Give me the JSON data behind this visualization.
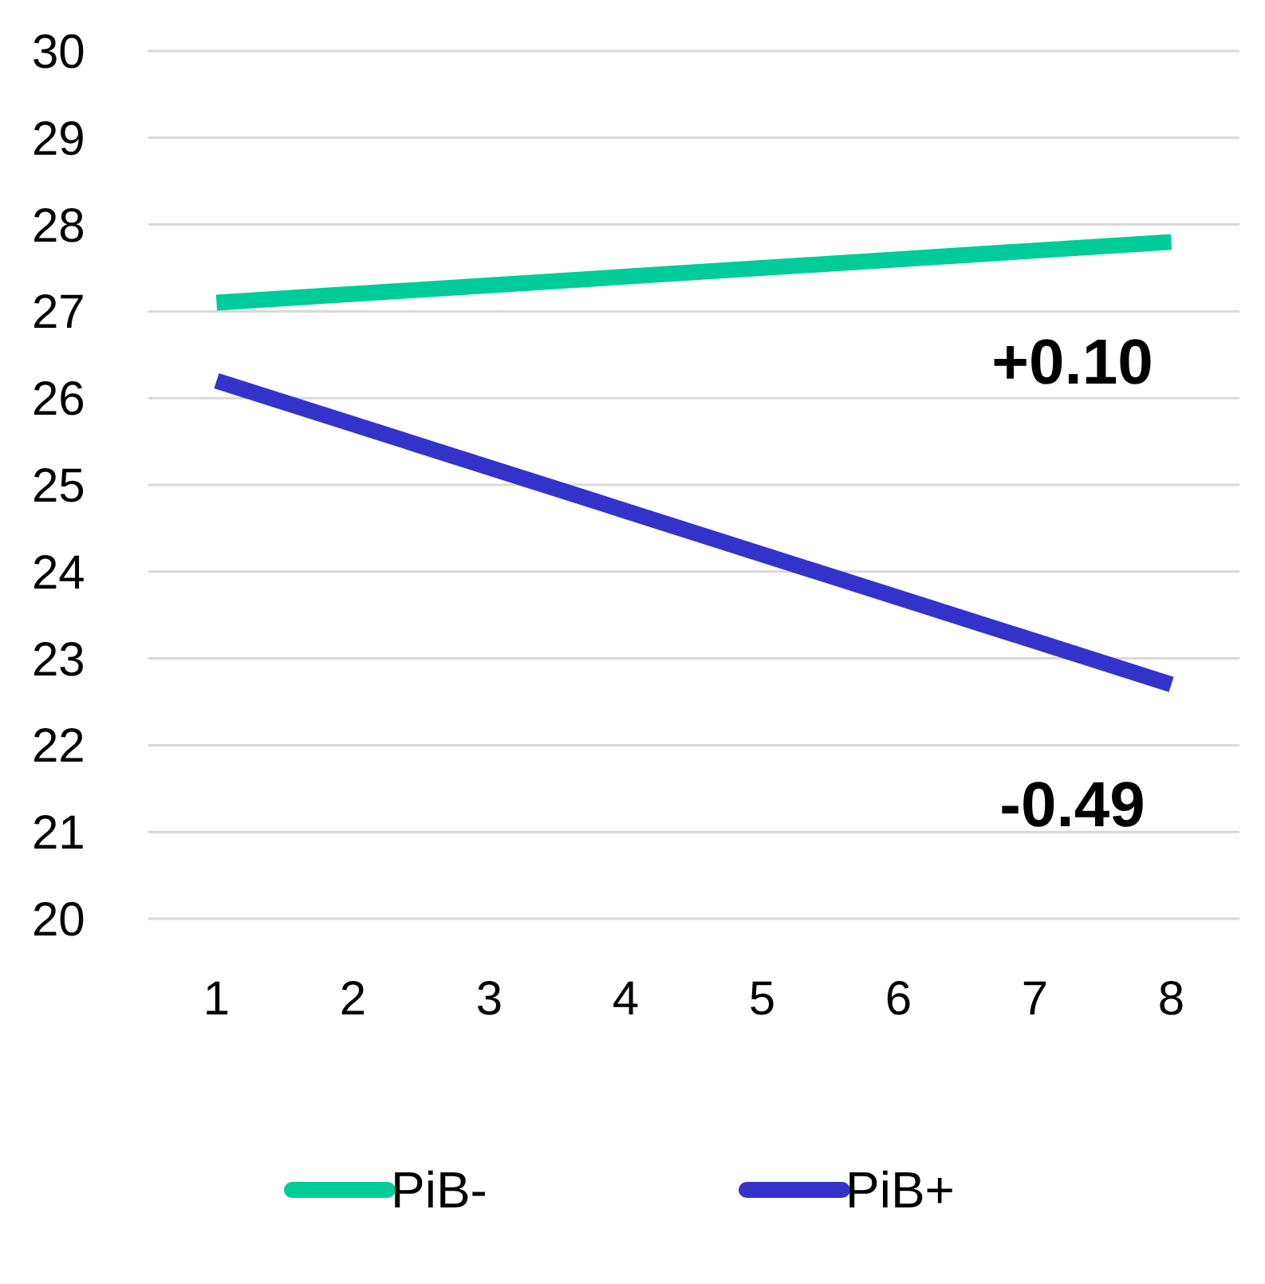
{
  "chart_data": {
    "type": "line",
    "x": [
      1,
      8
    ],
    "series": [
      {
        "name": "PiB-",
        "color": "#00cc99",
        "values": [
          27.1,
          27.8
        ]
      },
      {
        "name": "PiB+",
        "color": "#3333cc",
        "values": [
          26.2,
          22.7
        ]
      }
    ],
    "xlim": [
      0.5,
      8.5
    ],
    "xticks": [
      1,
      2,
      3,
      4,
      5,
      6,
      7,
      8
    ],
    "ylim": [
      20,
      30
    ],
    "yticks": [
      20,
      21,
      22,
      23,
      24,
      25,
      26,
      27,
      28,
      29,
      30
    ],
    "grid": "y",
    "legend": "bottom",
    "marker": "none",
    "line_style": "solid",
    "annotations": [
      "+0.10",
      "-0.49"
    ]
  }
}
